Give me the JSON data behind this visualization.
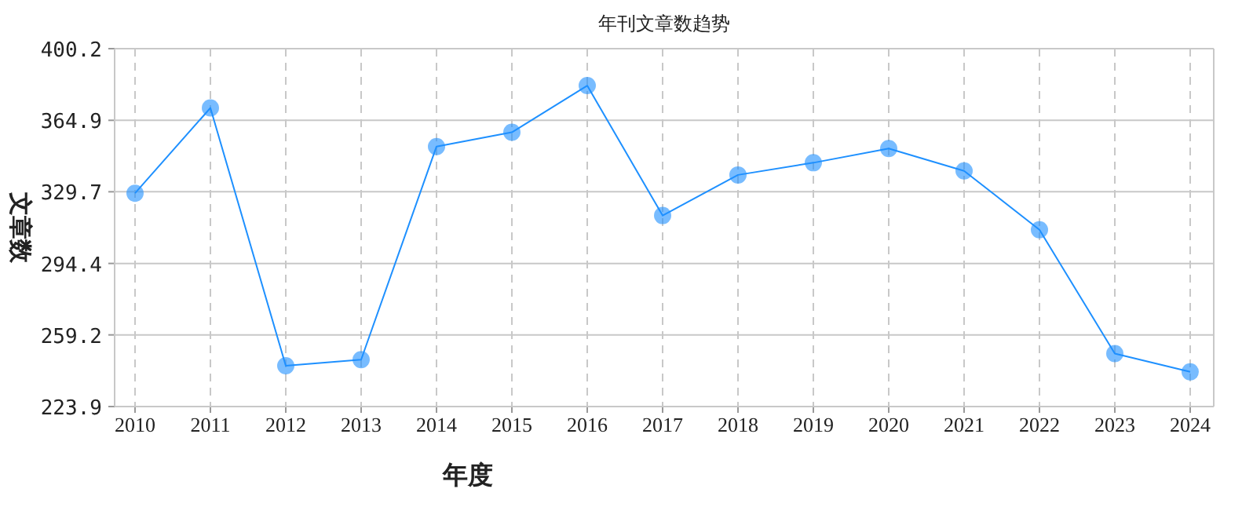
{
  "chart_data": {
    "type": "line",
    "title": "年刊文章数趋势",
    "xlabel": "年度",
    "ylabel": "文章数",
    "categories": [
      "2010",
      "2011",
      "2012",
      "2013",
      "2014",
      "2015",
      "2016",
      "2017",
      "2018",
      "2019",
      "2020",
      "2021",
      "2022",
      "2023",
      "2024"
    ],
    "series": [
      {
        "color": "#1e90ff",
        "values": [
          329,
          371,
          244,
          247,
          352,
          359,
          382,
          318,
          338,
          344,
          351,
          340,
          311,
          250,
          241
        ]
      }
    ],
    "ylim": [
      223.9,
      400.2
    ],
    "yticks": [
      223.9,
      259.2,
      294.4,
      329.7,
      364.9,
      400.2
    ],
    "grid": true,
    "marker": "circle",
    "line_style": "solid"
  }
}
